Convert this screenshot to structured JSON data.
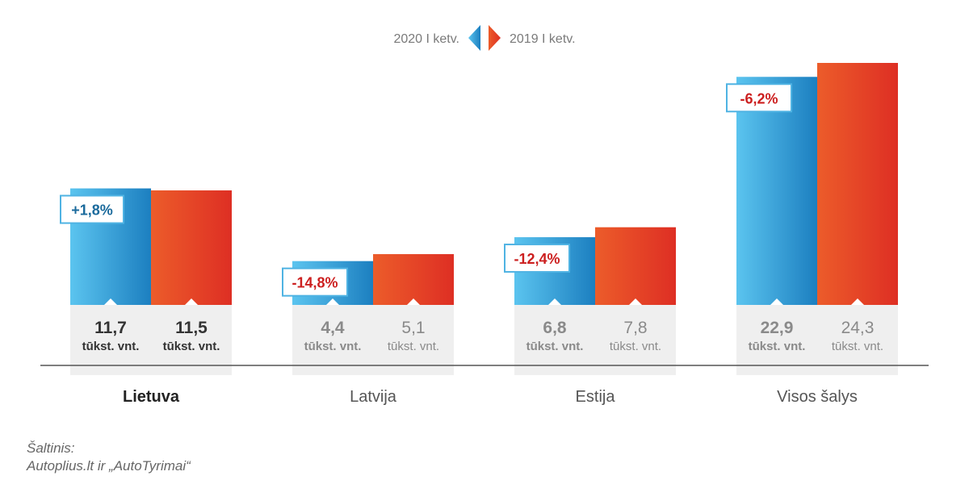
{
  "legend": {
    "series_2020": "2020 I ketv.",
    "series_2019": "2019 I ketv."
  },
  "colors": {
    "blue_light": "#5bc4ef",
    "blue_dark": "#1c7fc0",
    "red_light": "#ec5c2a",
    "red_dark": "#de2f24",
    "positive": "#1a6a9c",
    "negative": "#cc1f1f",
    "band": "#efefef",
    "axis": "#555555"
  },
  "chart_data": {
    "type": "bar",
    "categories": [
      "Lietuva",
      "Latvija",
      "Estija",
      "Visos šalys"
    ],
    "unit_label": "tūkst. vnt.",
    "series": [
      {
        "name": "2020 I ketv.",
        "values": [
          11.7,
          4.4,
          6.8,
          22.9
        ],
        "labels": [
          "11,7",
          "4,4",
          "6,8",
          "22,9"
        ]
      },
      {
        "name": "2019 I ketv.",
        "values": [
          11.5,
          5.1,
          7.8,
          24.3
        ],
        "labels": [
          "11,5",
          "5,1",
          "7,8",
          "24,3"
        ]
      }
    ],
    "changes": [
      "+1,8%",
      "-14,8%",
      "-12,4%",
      "-6,2%"
    ],
    "change_signs": [
      "positive",
      "negative",
      "negative",
      "negative"
    ],
    "highlighted_category": "Lietuva",
    "ylim": [
      0,
      24.3
    ]
  },
  "source": {
    "line1": "Šaltinis:",
    "line2": "Autoplius.lt ir „AutoTyrimai“"
  }
}
